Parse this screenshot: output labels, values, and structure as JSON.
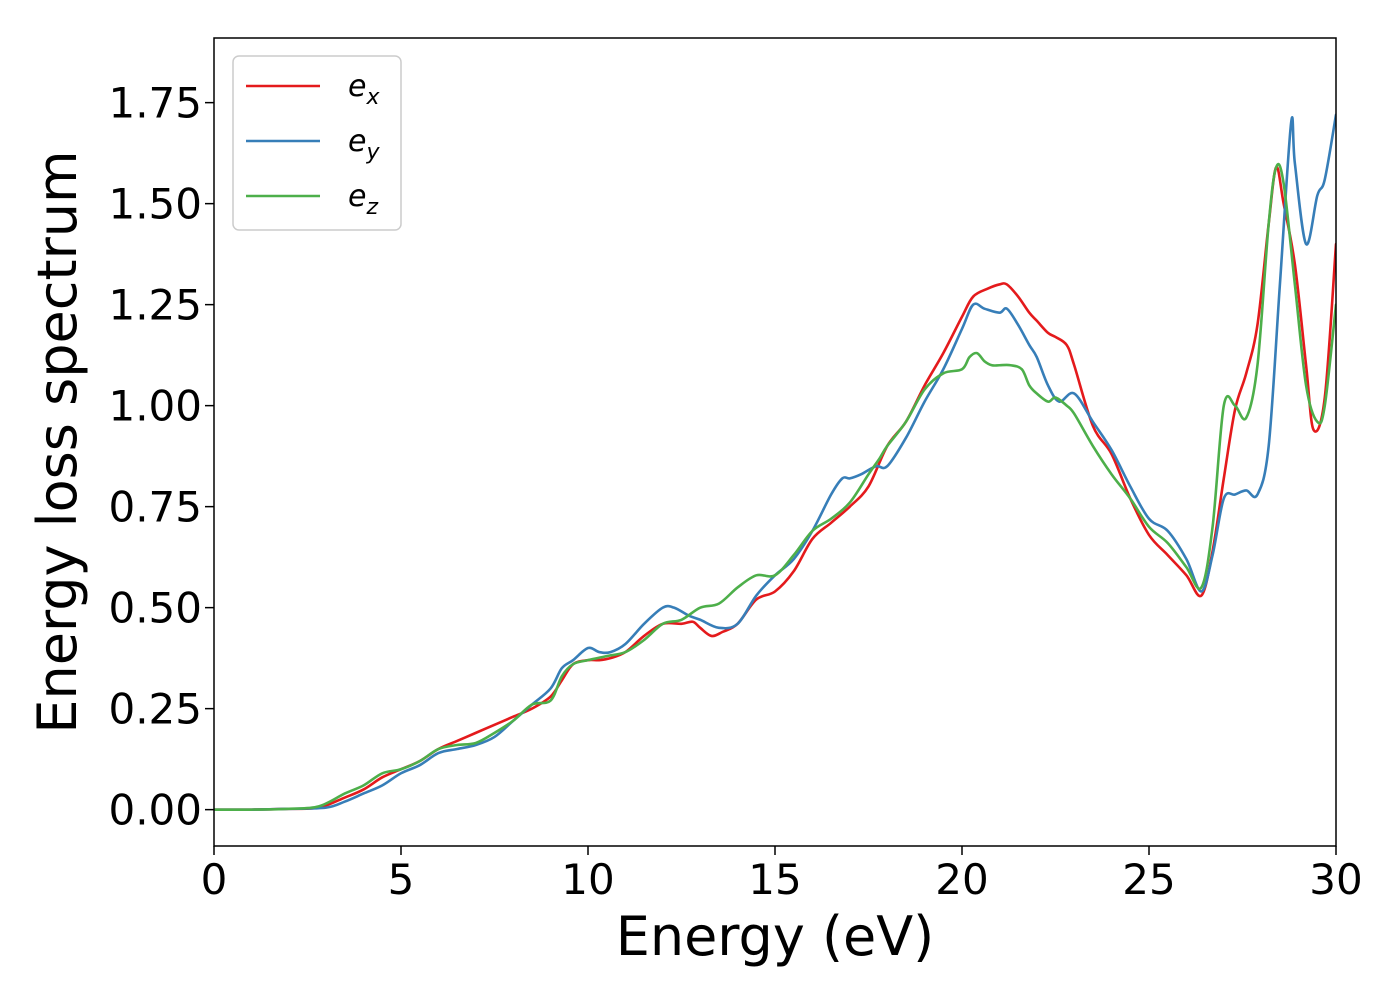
{
  "chart_data": {
    "type": "line",
    "title": "",
    "xlabel": "Energy (eV)",
    "ylabel": "Energy loss spectrum",
    "xlim": [
      0,
      30
    ],
    "ylim": [
      -0.09,
      1.91
    ],
    "xticks": [
      0,
      5,
      10,
      15,
      20,
      25,
      30
    ],
    "xtick_labels": [
      "0",
      "5",
      "10",
      "15",
      "20",
      "25",
      "30"
    ],
    "yticks": [
      0.0,
      0.25,
      0.5,
      0.75,
      1.0,
      1.25,
      1.5,
      1.75
    ],
    "ytick_labels": [
      "0.00",
      "0.25",
      "0.50",
      "0.75",
      "1.00",
      "1.25",
      "1.50",
      "1.75"
    ],
    "grid": false,
    "legend_position": "top-left",
    "series": [
      {
        "name": "e_x",
        "label_base": "e",
        "label_sub": "x",
        "color": "#e41a1c",
        "x": [
          0,
          1,
          2,
          2.8,
          3.5,
          4,
          4.5,
          5,
          5.5,
          6,
          6.5,
          7,
          7.5,
          8,
          8.5,
          9,
          9.3,
          9.6,
          10,
          10.3,
          10.6,
          11,
          11.5,
          12,
          12.5,
          12.8,
          13,
          13.3,
          13.6,
          14,
          14.5,
          15,
          15.5,
          16,
          16.5,
          17,
          17.5,
          18,
          18.5,
          19,
          19.5,
          20,
          20.3,
          20.7,
          21,
          21.2,
          21.5,
          21.8,
          22,
          22.3,
          22.5,
          22.8,
          23,
          23.5,
          24,
          24.5,
          25,
          25.5,
          26,
          26.4,
          26.7,
          27,
          27.3,
          27.6,
          27.9,
          28.2,
          28.4,
          28.6,
          28.9,
          29.2,
          29.4,
          29.7,
          30
        ],
        "y": [
          0.0,
          0.0,
          0.002,
          0.005,
          0.03,
          0.05,
          0.08,
          0.1,
          0.12,
          0.15,
          0.17,
          0.19,
          0.21,
          0.23,
          0.25,
          0.28,
          0.32,
          0.36,
          0.37,
          0.37,
          0.375,
          0.39,
          0.43,
          0.46,
          0.46,
          0.465,
          0.45,
          0.43,
          0.44,
          0.46,
          0.52,
          0.54,
          0.59,
          0.67,
          0.71,
          0.75,
          0.8,
          0.9,
          0.96,
          1.05,
          1.13,
          1.22,
          1.27,
          1.29,
          1.3,
          1.3,
          1.27,
          1.23,
          1.21,
          1.18,
          1.17,
          1.15,
          1.1,
          0.95,
          0.88,
          0.77,
          0.68,
          0.63,
          0.58,
          0.53,
          0.64,
          0.82,
          0.99,
          1.08,
          1.2,
          1.45,
          1.59,
          1.5,
          1.35,
          1.1,
          0.94,
          1.02,
          1.4
        ]
      },
      {
        "name": "e_y",
        "label_base": "e",
        "label_sub": "y",
        "color": "#377eb8",
        "x": [
          0,
          1,
          2,
          3,
          3.5,
          4,
          4.5,
          5,
          5.5,
          6,
          6.5,
          7,
          7.5,
          8,
          8.5,
          9,
          9.3,
          9.6,
          10,
          10.3,
          10.6,
          11,
          11.5,
          12,
          12.3,
          12.7,
          13,
          13.5,
          14,
          14.5,
          15,
          15.5,
          16,
          16.5,
          16.8,
          17,
          17.3,
          17.7,
          18,
          18.5,
          19,
          19.5,
          20,
          20.3,
          20.6,
          21,
          21.2,
          21.5,
          21.8,
          22,
          22.3,
          22.6,
          23,
          23.5,
          24,
          24.5,
          25,
          25.5,
          26,
          26.4,
          26.7,
          27,
          27.3,
          27.6,
          27.9,
          28.2,
          28.5,
          28.8,
          28.9,
          29.2,
          29.5,
          29.7,
          30
        ],
        "y": [
          0.0,
          0.0,
          0.002,
          0.005,
          0.02,
          0.04,
          0.06,
          0.09,
          0.11,
          0.14,
          0.15,
          0.16,
          0.18,
          0.22,
          0.26,
          0.3,
          0.35,
          0.37,
          0.4,
          0.39,
          0.39,
          0.41,
          0.46,
          0.5,
          0.5,
          0.48,
          0.47,
          0.45,
          0.46,
          0.53,
          0.58,
          0.62,
          0.69,
          0.78,
          0.82,
          0.82,
          0.83,
          0.85,
          0.85,
          0.92,
          1.01,
          1.09,
          1.19,
          1.25,
          1.24,
          1.23,
          1.24,
          1.2,
          1.15,
          1.12,
          1.05,
          1.01,
          1.03,
          0.96,
          0.89,
          0.8,
          0.72,
          0.69,
          0.62,
          0.54,
          0.63,
          0.77,
          0.78,
          0.79,
          0.78,
          0.9,
          1.3,
          1.7,
          1.6,
          1.4,
          1.52,
          1.56,
          1.72
        ]
      },
      {
        "name": "e_z",
        "label_base": "e",
        "label_sub": "z",
        "color": "#4daf4a",
        "x": [
          0,
          1,
          2,
          2.8,
          3.5,
          4,
          4.5,
          5,
          5.5,
          6,
          6.5,
          7,
          7.5,
          8,
          8.5,
          9,
          9.3,
          9.6,
          10,
          10.5,
          11,
          11.5,
          12,
          12.5,
          13,
          13.5,
          14,
          14.5,
          15,
          15.5,
          16,
          16.5,
          17,
          17.5,
          17.8,
          18,
          18.5,
          19,
          19.5,
          20,
          20.2,
          20.4,
          20.6,
          20.8,
          21,
          21.3,
          21.6,
          21.8,
          22,
          22.3,
          22.5,
          22.8,
          23,
          23.5,
          24,
          24.5,
          25,
          25.5,
          26,
          26.4,
          26.7,
          27,
          27.3,
          27.6,
          27.9,
          28.2,
          28.4,
          28.6,
          28.9,
          29.2,
          29.5,
          29.7,
          30
        ],
        "y": [
          0.0,
          0.0,
          0.002,
          0.008,
          0.04,
          0.06,
          0.09,
          0.1,
          0.12,
          0.15,
          0.16,
          0.165,
          0.19,
          0.22,
          0.26,
          0.27,
          0.33,
          0.36,
          0.37,
          0.38,
          0.39,
          0.42,
          0.46,
          0.47,
          0.5,
          0.51,
          0.55,
          0.58,
          0.58,
          0.63,
          0.69,
          0.72,
          0.76,
          0.83,
          0.87,
          0.9,
          0.96,
          1.04,
          1.08,
          1.09,
          1.12,
          1.13,
          1.11,
          1.1,
          1.1,
          1.1,
          1.09,
          1.05,
          1.03,
          1.01,
          1.02,
          1.0,
          0.98,
          0.9,
          0.83,
          0.77,
          0.7,
          0.66,
          0.6,
          0.55,
          0.7,
          1.0,
          1.0,
          0.97,
          1.1,
          1.45,
          1.59,
          1.55,
          1.3,
          1.05,
          0.96,
          1.0,
          1.25
        ]
      }
    ]
  }
}
